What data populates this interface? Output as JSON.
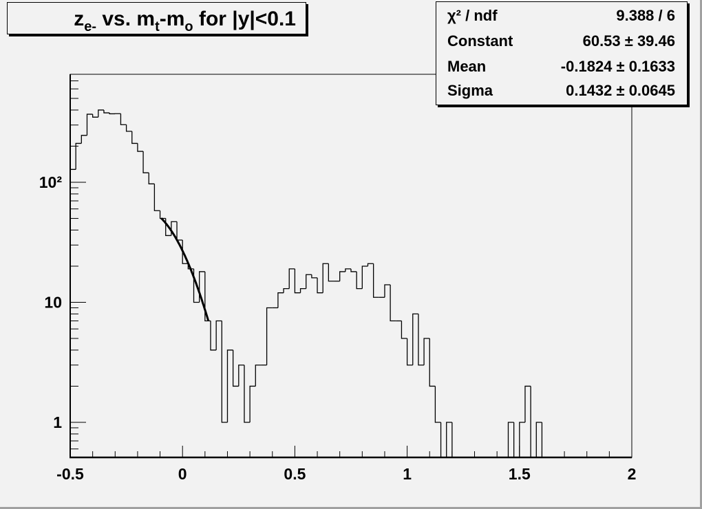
{
  "title_parts": [
    {
      "text": "z",
      "shift": "base"
    },
    {
      "text": "e-",
      "shift": "sub"
    },
    {
      "text": " vs. m",
      "shift": "base"
    },
    {
      "text": "t",
      "shift": "sub"
    },
    {
      "text": "-m",
      "shift": "base"
    },
    {
      "text": "o",
      "shift": "sub"
    },
    {
      "text": " for |y|<0.1",
      "shift": "base"
    }
  ],
  "stats": [
    {
      "label": "χ² / ndf",
      "value": "9.388 / 6"
    },
    {
      "label": "Constant",
      "value": "60.53 ± 39.46"
    },
    {
      "label": "Mean",
      "value": "-0.1824 ± 0.1633"
    },
    {
      "label": "Sigma",
      "value": "0.1432 ± 0.0645"
    }
  ],
  "colors": {
    "background": "#f2f2f2",
    "line": "#000000",
    "frame_shadow": "#000000"
  },
  "chart_data": {
    "type": "bar",
    "style": "step-histogram",
    "title": "z_e- vs. m_t-m_o for |y|<0.1",
    "xlabel": "",
    "ylabel": "",
    "xlim": [
      -0.5,
      2.0
    ],
    "ylim": [
      0.51,
      794
    ],
    "y_scale": "log",
    "grid": false,
    "bin_width": 0.025,
    "x_ticks": [
      {
        "value": -0.5,
        "label": "-0.5"
      },
      {
        "value": 0,
        "label": "0"
      },
      {
        "value": 0.5,
        "label": "0.5"
      },
      {
        "value": 1,
        "label": "1"
      },
      {
        "value": 1.5,
        "label": "1.5"
      },
      {
        "value": 2,
        "label": "2"
      }
    ],
    "y_ticks": [
      {
        "value": 1,
        "label": "1"
      },
      {
        "value": 10,
        "label": "10"
      },
      {
        "value": 100,
        "label": "10²"
      }
    ],
    "values": [
      128,
      211,
      246,
      369,
      349,
      400,
      379,
      372,
      373,
      302,
      266,
      211,
      181,
      120,
      97,
      58,
      50,
      36,
      47,
      33,
      21,
      19,
      10,
      18,
      7,
      4,
      7,
      1,
      4,
      2,
      3,
      1,
      2,
      3,
      3,
      9,
      9,
      12,
      13,
      19,
      12,
      13,
      17,
      16,
      12,
      21,
      15,
      15,
      18,
      19,
      18,
      13,
      20,
      21,
      11,
      11,
      14,
      7,
      7,
      5,
      3,
      8,
      3,
      5,
      2,
      1,
      0,
      1,
      0,
      0,
      0,
      0,
      0,
      0,
      0,
      0,
      0,
      0,
      1,
      0,
      1,
      2,
      0,
      1,
      0,
      0,
      0,
      0,
      0,
      0,
      0,
      0,
      0,
      0,
      0,
      0,
      0,
      0,
      0,
      0
    ],
    "fit": {
      "function": "gaus",
      "constant": 60.53,
      "mean": -0.1824,
      "sigma": 0.1432,
      "range": [
        -0.095,
        0.115
      ]
    },
    "legend": "top-right stats box"
  }
}
